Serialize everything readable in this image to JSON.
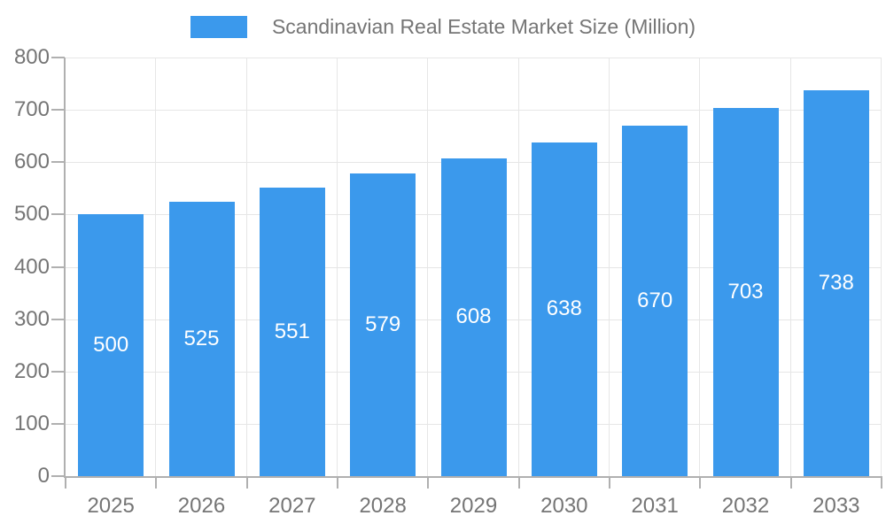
{
  "legend": {
    "label": "Scandinavian Real Estate Market Size (Million)"
  },
  "chart_data": {
    "type": "bar",
    "title": "Scandinavian Real Estate Market Size (Million)",
    "categories": [
      "2025",
      "2026",
      "2027",
      "2028",
      "2029",
      "2030",
      "2031",
      "2032",
      "2033"
    ],
    "values": [
      500,
      525,
      551,
      579,
      608,
      638,
      670,
      703,
      738
    ],
    "xlabel": "",
    "ylabel": "",
    "ylim": [
      0,
      800
    ],
    "yticks": [
      0,
      100,
      200,
      300,
      400,
      500,
      600,
      700,
      800
    ],
    "grid": true,
    "legend_position": "top-center",
    "value_labels": "inside-center",
    "colors": {
      "bar": "#3B99EC",
      "value_label": "#ffffff",
      "axis_text": "#757575",
      "axis_line": "#b0b0b0",
      "gridline": "#e6e6e6",
      "background": "#ffffff"
    }
  }
}
